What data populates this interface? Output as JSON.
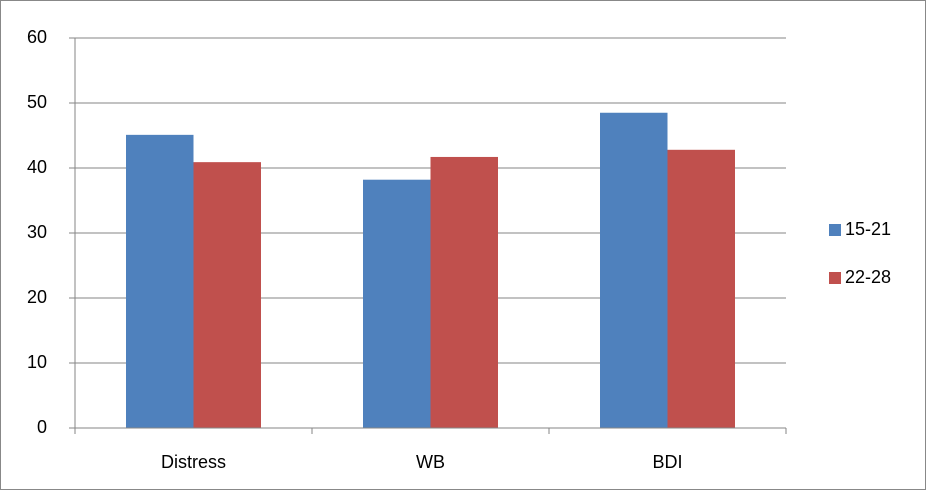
{
  "chart_data": {
    "type": "bar",
    "categories": [
      "Distress",
      "WB",
      "BDI"
    ],
    "series": [
      {
        "name": "15-21",
        "color": "#4f81bd",
        "values": [
          45.1,
          38.2,
          48.5
        ]
      },
      {
        "name": "22-28",
        "color": "#c0504d",
        "values": [
          40.9,
          41.7,
          42.8
        ]
      }
    ],
    "ylim": [
      0,
      60
    ],
    "yticks": [
      0,
      10,
      20,
      30,
      40,
      50,
      60
    ],
    "grid": true,
    "legend": "right"
  }
}
